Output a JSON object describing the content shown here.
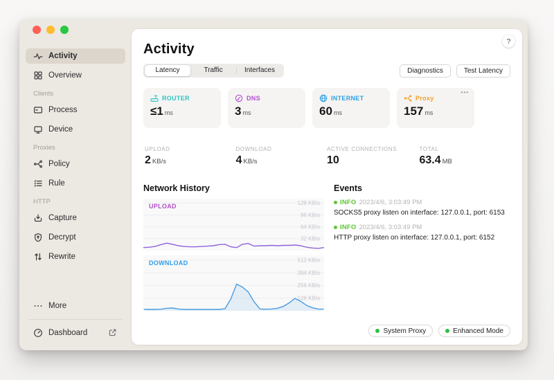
{
  "window": {
    "help": "?"
  },
  "sidebar": {
    "items": [
      {
        "label": "Activity",
        "selected": true
      },
      {
        "label": "Overview"
      },
      {
        "label": "Clients",
        "type": "section"
      },
      {
        "label": "Process"
      },
      {
        "label": "Device"
      },
      {
        "label": "Proxies",
        "type": "section"
      },
      {
        "label": "Policy"
      },
      {
        "label": "Rule"
      },
      {
        "label": "HTTP",
        "type": "section"
      },
      {
        "label": "Capture"
      },
      {
        "label": "Decrypt"
      },
      {
        "label": "Rewrite"
      }
    ],
    "more_label": "More",
    "dashboard_label": "Dashboard"
  },
  "header": {
    "title": "Activity",
    "tabs": [
      {
        "label": "Latency",
        "selected": true
      },
      {
        "label": "Traffic"
      },
      {
        "label": "Interfaces"
      }
    ],
    "buttons": [
      {
        "label": "Diagnostics"
      },
      {
        "label": "Test Latency"
      }
    ]
  },
  "latency_cards": [
    {
      "label": "ROUTER",
      "value": "≤1",
      "unit": "ms",
      "color": "#2ec5c6"
    },
    {
      "label": "DNS",
      "value": "3",
      "unit": "ms",
      "color": "#b44fd4"
    },
    {
      "label": "INTERNET",
      "value": "60",
      "unit": "ms",
      "color": "#2e9fe6"
    },
    {
      "label": "Proxy",
      "value": "157",
      "unit": "ms",
      "color": "#f59e2c",
      "menu": "•••"
    }
  ],
  "stats": [
    {
      "label": "UPLOAD",
      "value": "2",
      "unit": "KB/s"
    },
    {
      "label": "DOWNLOAD",
      "value": "4",
      "unit": "KB/s"
    },
    {
      "label": "ACTIVE CONNECTIONS",
      "value": "10",
      "unit": ""
    },
    {
      "label": "TOTAL",
      "value": "63.4",
      "unit": "MB"
    }
  ],
  "network_history": {
    "title": "Network History"
  },
  "chart_data": [
    {
      "type": "line",
      "name": "UPLOAD",
      "unit": "KB/s",
      "ylim": [
        0,
        140
      ],
      "gridlines": [
        128,
        96,
        64,
        32
      ],
      "grid_labels": [
        "128 KB/s",
        "96 KB/s",
        "64 KB/s",
        "32 KB/s"
      ],
      "line_color": "#8e63d9",
      "label_color": "#b14fc6",
      "fill": false,
      "values": [
        8,
        9,
        11,
        16,
        20,
        17,
        13,
        11,
        10,
        10,
        11,
        12,
        13,
        16,
        17,
        10,
        8,
        17,
        19,
        12,
        13,
        13,
        14,
        13,
        14,
        14,
        15,
        13,
        9,
        7,
        6,
        8
      ]
    },
    {
      "type": "line",
      "name": "DOWNLOAD",
      "unit": "KB/s",
      "ylim": [
        0,
        560
      ],
      "gridlines": [
        512,
        384,
        256,
        128
      ],
      "grid_labels": [
        "512 KB/s",
        "384 KB/s",
        "256 KB/s",
        "128 KB/s"
      ],
      "line_color": "#4b9be0",
      "label_color": "#2e9fe6",
      "fill": true,
      "values": [
        15,
        14,
        14,
        16,
        25,
        28,
        18,
        14,
        14,
        14,
        14,
        14,
        15,
        14,
        20,
        120,
        270,
        240,
        190,
        90,
        18,
        16,
        18,
        25,
        45,
        80,
        125,
        95,
        55,
        30,
        18,
        16
      ]
    }
  ],
  "events": {
    "title": "Events",
    "items": [
      {
        "level": "INFO",
        "time": "2023/4/6, 3:03:49 PM",
        "message": "SOCKS5 proxy listen on interface: 127.0.0.1, port: 6153"
      },
      {
        "level": "INFO",
        "time": "2023/4/6, 3:03:49 PM",
        "message": "HTTP proxy listen on interface: 127.0.0.1, port: 6152"
      }
    ]
  },
  "footer": {
    "badges": [
      {
        "label": "System Proxy"
      },
      {
        "label": "Enhanced Mode"
      }
    ],
    "dot_color": "#2fbf43"
  }
}
